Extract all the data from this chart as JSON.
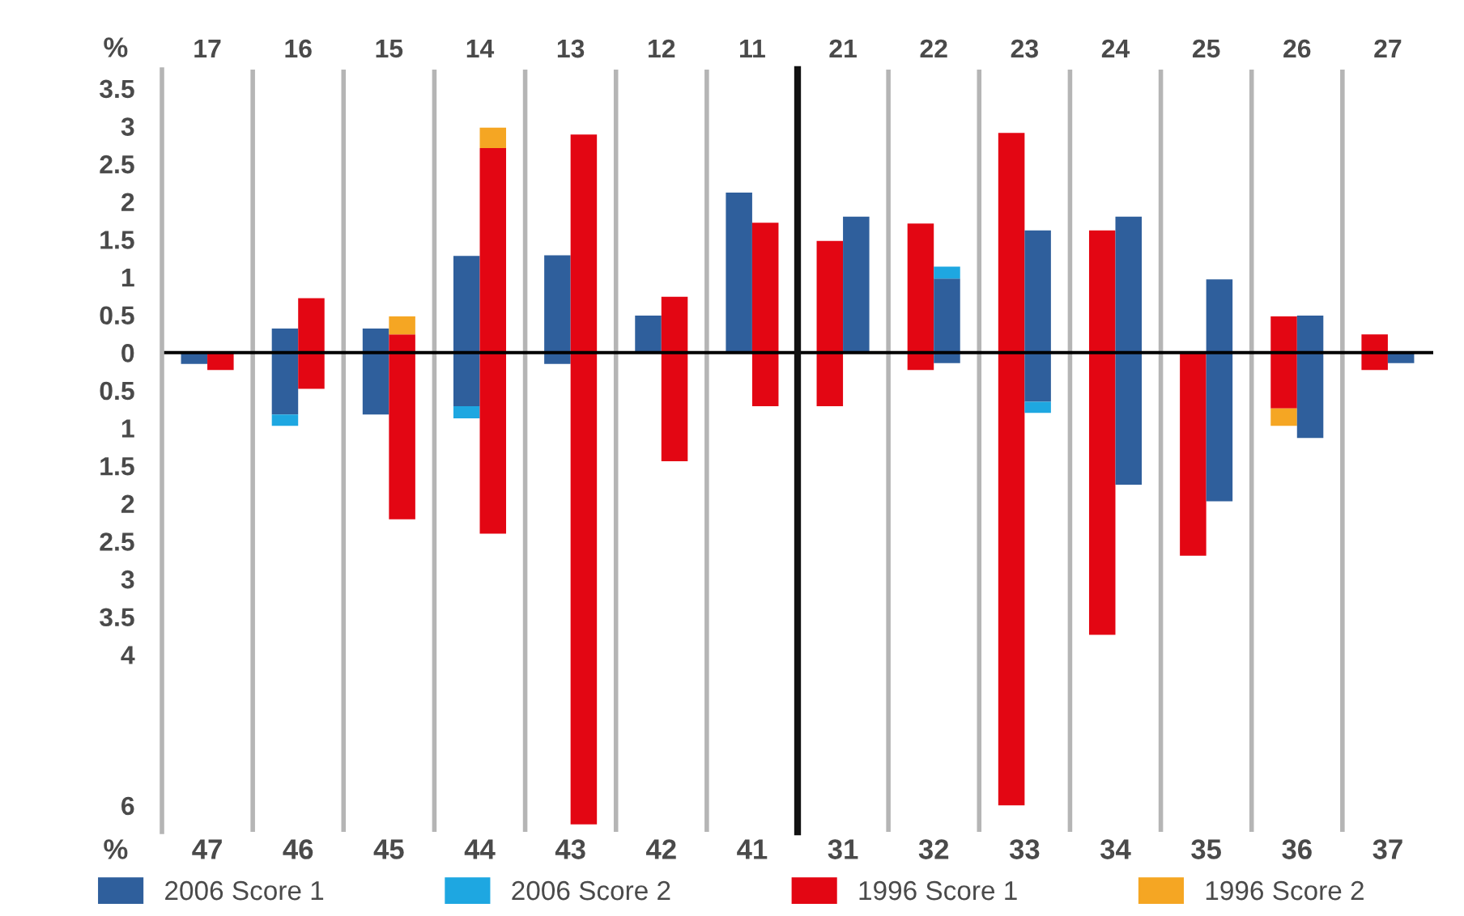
{
  "chart_data": [
    {
      "type": "bar",
      "ylabel": "%",
      "categories": [
        "17",
        "16",
        "15",
        "14",
        "13",
        "12",
        "11"
      ],
      "series": [
        {
          "name": "2006 Score 1",
          "color": "#2f5f9c",
          "base": [
            -0.15,
            -0.82,
            -0.82,
            -0.71,
            -0.15,
            0,
            0
          ],
          "values": [
            0.15,
            1.14,
            1.14,
            1.99,
            1.44,
            0.49,
            2.12
          ]
        },
        {
          "name": "2006 Score 2",
          "color": "#1ea7e1",
          "base": [
            null,
            -0.97,
            null,
            -0.87,
            null,
            null,
            null
          ],
          "values": [
            null,
            0.15,
            null,
            0.16,
            null,
            null,
            null
          ]
        },
        {
          "name": "1996 Score 1",
          "color": "#e30613",
          "base": [
            -0.23,
            -0.48,
            -2.21,
            -2.4,
            -6.25,
            -1.44,
            -0.71
          ],
          "values": [
            0.23,
            1.2,
            2.45,
            5.11,
            9.14,
            2.18,
            2.43
          ]
        },
        {
          "name": "1996 Score 2",
          "color": "#f5a623",
          "base": [
            null,
            null,
            0.24,
            2.71,
            null,
            null,
            null
          ],
          "values": [
            null,
            null,
            0.24,
            0.27,
            null,
            null,
            null
          ]
        }
      ],
      "ylim": [
        -6.35,
        3.75
      ],
      "yticks": [
        3.5,
        3,
        2.5,
        2,
        1.5,
        1,
        0.5,
        0,
        {
          "value": -0.5,
          "label": "0.5"
        },
        {
          "value": -1,
          "label": "1"
        },
        {
          "value": -1.5,
          "label": "1.5"
        },
        {
          "value": -2,
          "label": "2"
        },
        {
          "value": -2.5,
          "label": "2.5"
        },
        {
          "value": -3,
          "label": "3"
        },
        {
          "value": -3.5,
          "label": "3.5"
        },
        {
          "value": -4,
          "label": "4"
        },
        {
          "value": -6,
          "label": "6"
        }
      ],
      "ref_lines": [
        {
          "axis": "y",
          "value": 0,
          "color": "#000000"
        }
      ],
      "grid": "x",
      "legend": "bottom",
      "annotations": [
        "%",
        "47",
        "46",
        "45",
        "44",
        "43",
        "42",
        "41"
      ]
    },
    {
      "type": "bar",
      "categories": [
        "21",
        "22",
        "23",
        "24",
        "25",
        "26",
        "27"
      ],
      "series": [
        {
          "name": "1996 Score 1",
          "color": "#e30613",
          "base": [
            -0.71,
            -0.23,
            -6.0,
            -3.74,
            -2.69,
            -0.74,
            -0.23
          ],
          "values": [
            2.19,
            1.94,
            8.91,
            5.36,
            2.69,
            1.22,
            0.47
          ]
        },
        {
          "name": "1996 Score 2",
          "color": "#f5a623",
          "base": [
            null,
            null,
            null,
            null,
            null,
            -0.97,
            null
          ],
          "values": [
            null,
            null,
            null,
            null,
            null,
            0.23,
            null
          ]
        },
        {
          "name": "2006 Score 1",
          "color": "#2f5f9c",
          "base": [
            0,
            -0.14,
            -0.65,
            -1.75,
            -1.97,
            -1.13,
            -0.14
          ],
          "values": [
            1.8,
            1.12,
            2.27,
            3.55,
            2.94,
            1.62,
            0.14
          ]
        },
        {
          "name": "2006 Score 2",
          "color": "#1ea7e1",
          "base": [
            null,
            0.98,
            -0.8,
            null,
            null,
            null,
            null
          ],
          "values": [
            null,
            0.16,
            0.15,
            null,
            null,
            null,
            null
          ]
        }
      ],
      "ylim": [
        -6.35,
        3.75
      ],
      "yticks": [
        3.5,
        3,
        2.5,
        2,
        1.5,
        1,
        0.5,
        0,
        {
          "value": -0.5,
          "label": "0.5"
        },
        {
          "value": -1,
          "label": "1"
        },
        {
          "value": -1.5,
          "label": "1.5"
        },
        {
          "value": -2,
          "label": "2"
        },
        {
          "value": -2.5,
          "label": "2.5"
        },
        {
          "value": -3,
          "label": "3"
        },
        {
          "value": -3.5,
          "label": "3.5"
        },
        {
          "value": -4,
          "label": "4"
        },
        {
          "value": -6,
          "label": "6"
        }
      ],
      "ref_lines": [
        {
          "axis": "y",
          "value": 0,
          "color": "#000000"
        }
      ],
      "grid": "x",
      "tick_labels": "x",
      "annotations": [
        "31",
        "32",
        "33",
        "34",
        "35",
        "36",
        "37"
      ]
    }
  ]
}
